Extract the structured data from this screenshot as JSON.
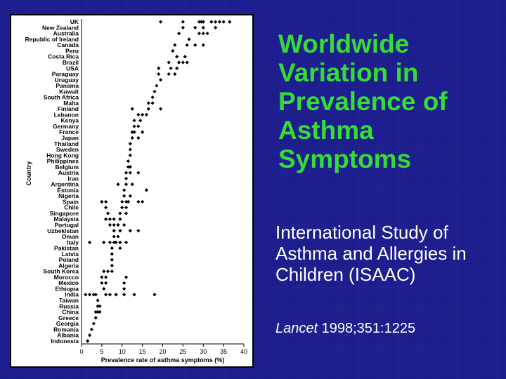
{
  "slide": {
    "title": "Worldwide Variation in Prevalence of Asthma Symptoms",
    "subtitle": "International Study of Asthma and Allergies in Children (ISAAC)",
    "citation_journal": "Lancet",
    "citation_ref": " 1998;351:1225"
  },
  "chart_data": {
    "type": "scatter",
    "title": "",
    "xlabel": "Prevalence rate of asthma symptoms (%)",
    "ylabel": "Country",
    "xlim": [
      0,
      40
    ],
    "xticks": [
      0,
      5,
      10,
      15,
      20,
      25,
      30,
      35,
      40
    ],
    "grid": false,
    "colors": {
      "points": "#000000"
    },
    "categories": [
      "UK",
      "New Zealand",
      "Australia",
      "Republic of Ireland",
      "Canada",
      "Peru",
      "Costa Rica",
      "Brazil",
      "USA",
      "Paraguay",
      "Uruguay",
      "Panama",
      "Kuwait",
      "South Africa",
      "Malta",
      "Finland",
      "Lebanon",
      "Kenya",
      "Germany",
      "France",
      "Japan",
      "Thailand",
      "Sweden",
      "Hong Kong",
      "Philippines",
      "Belgium",
      "Austria",
      "Iran",
      "Argentina",
      "Estonia",
      "Nigeria",
      "Spain",
      "Chile",
      "Singapore",
      "Malaysia",
      "Portugal",
      "Uzbekistan",
      "Oman",
      "Italy",
      "Pakistan",
      "Latvia",
      "Poland",
      "Algeria",
      "South Korea",
      "Morocco",
      "Mexico",
      "Ethiopia",
      "India",
      "Taiwan",
      "Russia",
      "China",
      "Greece",
      "Georgia",
      "Romania",
      "Albania",
      "Indonesia"
    ],
    "values": [
      [
        19.5,
        25,
        29,
        29.5,
        30,
        32,
        33,
        34,
        35,
        36.5
      ],
      [
        25,
        28,
        30,
        33
      ],
      [
        24,
        29,
        30,
        31
      ],
      [
        26.5
      ],
      [
        23,
        26,
        28,
        30
      ],
      [
        22.5
      ],
      [
        23.5,
        25.5
      ],
      [
        21.5,
        24,
        25,
        26
      ],
      [
        19,
        22,
        23.5
      ],
      [
        19,
        21.5,
        23
      ],
      [
        19.5
      ],
      [
        18.5
      ],
      [
        18
      ],
      [
        17.5
      ],
      [
        16.5,
        17.5
      ],
      [
        12.5,
        16.5,
        19.5
      ],
      [
        14,
        15,
        16
      ],
      [
        13,
        14.5
      ],
      [
        13,
        14
      ],
      [
        12.5,
        13,
        15
      ],
      [
        12.5,
        14
      ],
      [
        12
      ],
      [
        12
      ],
      [
        12
      ],
      [
        11.5
      ],
      [
        11.5,
        12
      ],
      [
        11,
        12,
        14
      ],
      [
        11
      ],
      [
        9,
        11,
        12.5
      ],
      [
        10.5,
        16
      ],
      [
        10.5,
        12
      ],
      [
        5,
        6,
        10,
        11,
        11.5,
        14,
        15
      ],
      [
        6,
        10,
        11
      ],
      [
        6.5,
        9.5,
        11
      ],
      [
        6,
        7,
        8,
        9.5
      ],
      [
        7,
        8,
        9,
        10.5
      ],
      [
        8,
        9.5,
        12,
        14
      ],
      [
        8,
        9
      ],
      [
        2,
        5.5,
        7,
        8,
        8.5,
        9.5,
        11
      ],
      [
        7.5,
        9.5
      ],
      [
        7.5
      ],
      [
        7.5
      ],
      [
        7.5
      ],
      [
        5.5,
        6.5,
        7.5
      ],
      [
        5,
        6,
        11
      ],
      [
        5,
        6,
        10.5
      ],
      [
        5.5,
        10.5
      ],
      [
        1,
        2,
        3,
        3.5,
        6,
        7,
        8.5,
        10.5,
        13,
        18
      ],
      [
        4
      ],
      [
        4,
        4.5
      ],
      [
        3.5,
        4,
        4.5
      ],
      [
        3.5
      ],
      [
        3
      ],
      [
        2.5
      ],
      [
        2
      ],
      [
        1.5
      ]
    ]
  }
}
